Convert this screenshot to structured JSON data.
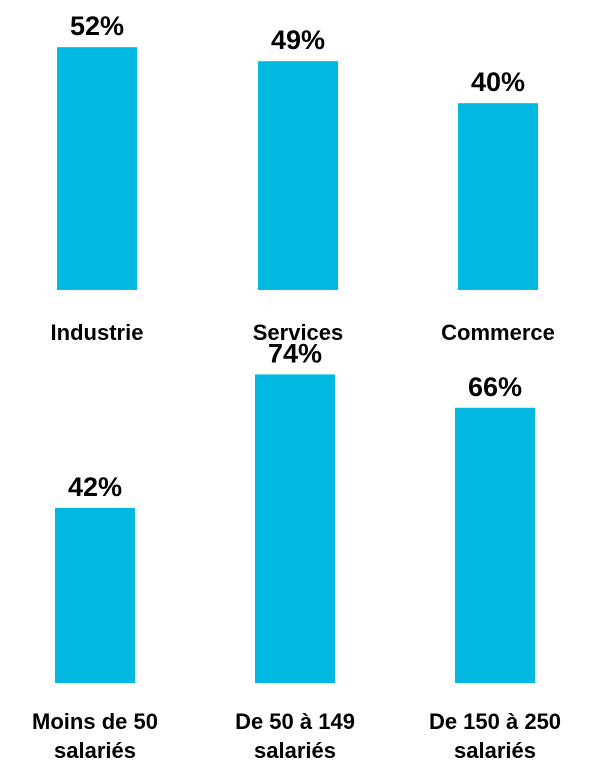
{
  "bar_color": "#00B8E0",
  "chart_data": [
    {
      "type": "bar",
      "title": "",
      "xlabel": "",
      "ylabel": "",
      "ylim": [
        0,
        100
      ],
      "categories": [
        [
          "Industrie"
        ],
        [
          "Services"
        ],
        [
          "Commerce"
        ]
      ],
      "values": [
        52,
        49,
        40
      ],
      "value_labels": [
        "52%",
        "49%",
        "40%"
      ],
      "grid": false,
      "legend": "none"
    },
    {
      "type": "bar",
      "title": "",
      "xlabel": "",
      "ylabel": "",
      "ylim": [
        0,
        100
      ],
      "categories": [
        [
          "Moins de 50",
          "salariés"
        ],
        [
          "De 50 à 149",
          "salariés"
        ],
        [
          "De 150 à 250",
          "salariés"
        ]
      ],
      "values": [
        42,
        74,
        66
      ],
      "value_labels": [
        "42%",
        "74%",
        "66%"
      ],
      "grid": false,
      "legend": "none"
    }
  ]
}
